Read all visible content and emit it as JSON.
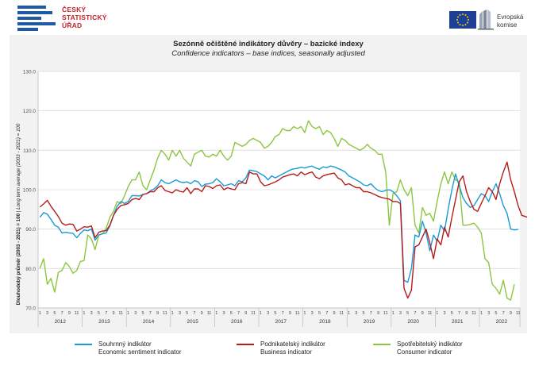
{
  "header": {
    "csu_name_line1": "ČESKÝ",
    "csu_name_line2": "STATISTICKÝ",
    "csu_name_line3": "ÚŘAD",
    "eu_name_line1": "Evropská",
    "eu_name_line2": "komise"
  },
  "chart_data": {
    "type": "line",
    "title": "Sezónně očištěné indikátory důvěry – bazické indexy",
    "subtitle": "Confidence indicators – base indices, seasonally adjusted",
    "ylabel_cz": "Dlouhodobý průměr (2003 - 2021) = 100",
    "ylabel_en": "Long term average (2003 - 2021) = 100",
    "ylim": [
      70,
      130
    ],
    "yticks": [
      "70.0",
      "80.0",
      "90.0",
      "100.0",
      "110.0",
      "120.0",
      "130.0"
    ],
    "month_tick_labels": [
      "1",
      "3",
      "5",
      "7",
      "9",
      "11"
    ],
    "years": [
      "2012",
      "2013",
      "2014",
      "2015",
      "2016",
      "2017",
      "2018",
      "2019",
      "2020",
      "2021",
      "2022"
    ],
    "x_start": "2012-01",
    "grid": true,
    "series": [
      {
        "name": "Souhrnný indikátor",
        "name_en": "Economic sentiment indicator",
        "color": "#1a9ad6",
        "values": [
          93.0,
          94.2,
          93.8,
          92.5,
          91.0,
          90.5,
          89.0,
          89.2,
          89.0,
          88.9,
          87.8,
          88.9,
          89.8,
          89.6,
          90.0,
          87.2,
          88.5,
          88.8,
          89.0,
          90.8,
          93.5,
          95.8,
          97.0,
          96.5,
          97.0,
          98.5,
          98.5,
          98.4,
          98.8,
          99.0,
          99.7,
          100.2,
          101.0,
          102.5,
          101.8,
          101.5,
          102.0,
          102.5,
          102.0,
          101.8,
          102.0,
          101.5,
          102.3,
          102.0,
          100.8,
          101.4,
          101.5,
          101.8,
          102.8,
          102.0,
          101.0,
          101.2,
          101.5,
          101.0,
          102.3,
          102.0,
          103.0,
          105.0,
          104.8,
          104.6,
          104.0,
          103.5,
          102.5,
          103.5,
          103.0,
          103.5,
          104.0,
          104.5,
          105.0,
          105.3,
          105.4,
          105.7,
          105.5,
          105.8,
          106.0,
          105.5,
          105.2,
          105.8,
          105.6,
          106.0,
          105.8,
          105.4,
          105.0,
          104.5,
          103.5,
          103.0,
          102.5,
          102.0,
          101.2,
          101.0,
          101.5,
          100.5,
          99.8,
          99.5,
          99.8,
          100.0,
          99.5,
          98.5,
          97.2,
          77.0,
          76.5,
          80.0,
          88.5,
          88.0,
          92.0,
          89.0,
          84.5,
          88.5,
          87.0,
          91.0,
          89.5,
          95.0,
          100.0,
          104.0,
          101.0,
          98.0,
          96.5,
          95.5,
          96.0,
          97.5,
          99.0,
          98.5,
          97.0,
          99.5,
          101.5,
          99.0,
          96.0,
          94.0,
          90.0,
          89.8,
          89.9
        ]
      },
      {
        "name": "Podnikatelský indikátor",
        "name_en": "Business indicator",
        "color": "#b71c1c",
        "values": [
          95.6,
          96.4,
          97.3,
          95.8,
          94.5,
          93.2,
          91.5,
          91.0,
          91.3,
          91.2,
          89.5,
          90.0,
          90.6,
          90.5,
          90.8,
          87.8,
          89.2,
          89.5,
          89.6,
          91.0,
          93.5,
          95.0,
          96.0,
          96.2,
          96.5,
          97.5,
          97.8,
          97.5,
          98.8,
          99.0,
          99.5,
          99.5,
          100.5,
          101.0,
          99.8,
          99.5,
          99.2,
          100.0,
          99.6,
          99.4,
          100.5,
          99.0,
          100.2,
          100.2,
          99.5,
          101.0,
          100.8,
          100.3,
          101.0,
          101.2,
          100.0,
          100.5,
          100.2,
          100.0,
          101.5,
          101.8,
          101.5,
          104.5,
          104.0,
          104.0,
          102.0,
          101.0,
          101.2,
          101.6,
          102.0,
          102.5,
          103.2,
          103.5,
          103.8,
          104.0,
          103.5,
          104.5,
          103.8,
          104.2,
          104.5,
          103.2,
          102.8,
          103.5,
          103.8,
          104.0,
          104.2,
          103.0,
          102.5,
          101.2,
          101.5,
          101.0,
          100.5,
          100.5,
          99.5,
          99.5,
          99.2,
          98.8,
          98.3,
          98.0,
          97.8,
          97.6,
          97.0,
          97.0,
          96.5,
          75.0,
          72.5,
          74.5,
          85.5,
          86.0,
          88.0,
          90.0,
          86.5,
          82.5,
          87.5,
          86.0,
          90.5,
          88.0,
          93.0,
          97.5,
          102.0,
          103.5,
          99.5,
          97.0,
          95.0,
          94.5,
          96.5,
          98.5,
          100.5,
          99.5,
          97.5,
          101.5,
          104.5,
          107.0,
          102.5,
          99.5,
          96.0,
          93.5,
          93.2,
          92.8
        ]
      },
      {
        "name": "Spotřebitelský indikátor",
        "name_en": "Consumer indicator",
        "color": "#8cc63f",
        "values": [
          80.0,
          82.5,
          76.0,
          77.5,
          74.0,
          79.0,
          79.5,
          81.5,
          80.5,
          78.8,
          79.5,
          81.8,
          82.0,
          88.5,
          87.5,
          84.8,
          88.5,
          88.8,
          90.2,
          93.0,
          94.5,
          97.0,
          96.5,
          98.5,
          100.8,
          102.5,
          102.5,
          104.5,
          101.0,
          100.0,
          102.5,
          105.0,
          108.0,
          110.0,
          109.0,
          107.5,
          110.0,
          108.5,
          110.0,
          108.0,
          107.0,
          106.0,
          109.0,
          109.5,
          110.0,
          108.5,
          108.3,
          109.0,
          108.5,
          110.0,
          108.5,
          107.5,
          108.5,
          112.0,
          111.5,
          111.0,
          111.5,
          112.5,
          113.0,
          112.5,
          112.0,
          110.5,
          111.0,
          112.0,
          113.5,
          114.0,
          115.5,
          115.0,
          115.0,
          116.0,
          115.5,
          116.0,
          114.5,
          117.5,
          116.0,
          115.5,
          116.0,
          114.0,
          115.0,
          114.5,
          113.0,
          111.0,
          113.0,
          112.5,
          111.5,
          111.0,
          110.5,
          110.0,
          110.5,
          111.5,
          110.5,
          110.0,
          109.0,
          109.0,
          104.5,
          91.0,
          99.0,
          99.5,
          102.5,
          100.0,
          98.5,
          100.5,
          91.0,
          89.0,
          95.5,
          93.5,
          94.0,
          92.0,
          97.0,
          101.5,
          104.5,
          101.5,
          104.5,
          102.5,
          102.0,
          91.0,
          91.0,
          91.2,
          91.5,
          90.5,
          89.0,
          82.5,
          81.5,
          76.0,
          75.0,
          73.5,
          77.0,
          72.5,
          72.0,
          76.0
        ]
      }
    ]
  }
}
